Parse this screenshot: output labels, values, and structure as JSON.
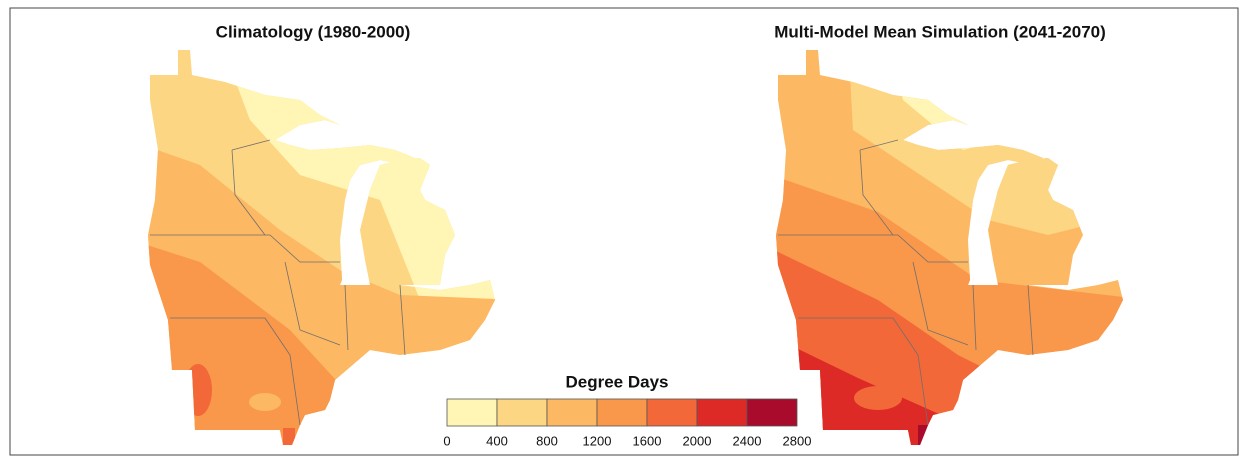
{
  "panels": [
    {
      "title": "Climatology (1980-2000)"
    },
    {
      "title": "Multi-Model Mean Simulation (2041-2070)"
    }
  ],
  "legend": {
    "title": "Degree Days",
    "ticks": [
      0,
      400,
      800,
      1200,
      1600,
      2000,
      2400,
      2800
    ],
    "colors": [
      "#fff5b4",
      "#fdd683",
      "#fcb862",
      "#f9974b",
      "#f26839",
      "#dd2a26",
      "#a80b2c"
    ]
  }
}
